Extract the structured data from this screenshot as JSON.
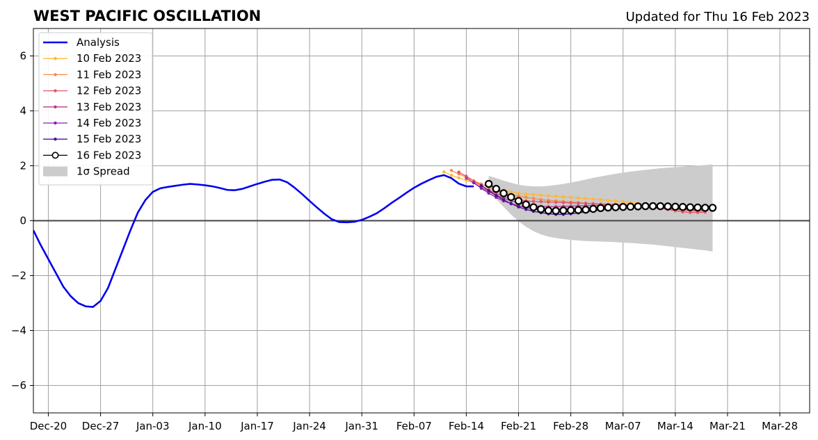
{
  "chart_data": {
    "type": "line",
    "title": "WEST PACIFIC OSCILLATION",
    "subtitle": "Updated for Thu 16 Feb 2023",
    "xlabel": "",
    "ylabel": "",
    "x_ticks": [
      "Dec-20",
      "Dec-27",
      "Jan-03",
      "Jan-10",
      "Jan-17",
      "Jan-24",
      "Jan-31",
      "Feb-07",
      "Feb-14",
      "Feb-21",
      "Feb-28",
      "Mar-07",
      "Mar-14",
      "Mar-21",
      "Mar-28"
    ],
    "y_ticks": [
      "6",
      "4",
      "2",
      "0",
      "−2",
      "−4",
      "−6"
    ],
    "y_tick_values": [
      6,
      4,
      2,
      0,
      -2,
      -4,
      -6
    ],
    "xlim": [
      "2022-12-18",
      "2023-04-01"
    ],
    "ylim": [
      -7,
      7
    ],
    "grid": true,
    "legend_position": "top-left",
    "colors": {
      "analysis": "#0000ee",
      "spread": "#cccccc",
      "zero_line": "#444444",
      "grid": "#a0a0a0"
    },
    "analysis": {
      "name": "Analysis",
      "x": [
        "2022-12-18",
        "2022-12-19",
        "2022-12-20",
        "2022-12-21",
        "2022-12-22",
        "2022-12-23",
        "2022-12-24",
        "2022-12-25",
        "2022-12-26",
        "2022-12-27",
        "2022-12-28",
        "2022-12-29",
        "2022-12-30",
        "2022-12-31",
        "2023-01-01",
        "2023-01-02",
        "2023-01-03",
        "2023-01-04",
        "2023-01-05",
        "2023-01-06",
        "2023-01-07",
        "2023-01-08",
        "2023-01-09",
        "2023-01-10",
        "2023-01-11",
        "2023-01-12",
        "2023-01-13",
        "2023-01-14",
        "2023-01-15",
        "2023-01-16",
        "2023-01-17",
        "2023-01-18",
        "2023-01-19",
        "2023-01-20",
        "2023-01-21",
        "2023-01-22",
        "2023-01-23",
        "2023-01-24",
        "2023-01-25",
        "2023-01-26",
        "2023-01-27",
        "2023-01-28",
        "2023-01-29",
        "2023-01-30",
        "2023-01-31",
        "2023-02-01",
        "2023-02-02",
        "2023-02-03",
        "2023-02-04",
        "2023-02-05",
        "2023-02-06",
        "2023-02-07",
        "2023-02-08",
        "2023-02-09",
        "2023-02-10",
        "2023-02-11",
        "2023-02-12",
        "2023-02-13",
        "2023-02-14",
        "2023-02-15"
      ],
      "y": [
        -0.35,
        -0.9,
        -1.4,
        -1.9,
        -2.4,
        -2.75,
        -3.0,
        -3.12,
        -3.14,
        -2.92,
        -2.45,
        -1.75,
        -1.05,
        -0.35,
        0.3,
        0.75,
        1.05,
        1.18,
        1.23,
        1.27,
        1.31,
        1.34,
        1.32,
        1.29,
        1.25,
        1.19,
        1.12,
        1.11,
        1.16,
        1.25,
        1.34,
        1.42,
        1.49,
        1.5,
        1.4,
        1.2,
        0.97,
        0.72,
        0.48,
        0.25,
        0.05,
        -0.05,
        -0.06,
        -0.04,
        0.03,
        0.14,
        0.27,
        0.45,
        0.65,
        0.83,
        1.02,
        1.2,
        1.35,
        1.48,
        1.6,
        1.66,
        1.55,
        1.35,
        1.25,
        1.25
      ]
    },
    "series": [
      {
        "name": "10 Feb 2023",
        "color": "#ffb732",
        "start": "2023-02-11",
        "y": [
          1.78,
          1.65,
          1.56,
          1.47,
          1.38,
          1.3,
          1.23,
          1.16,
          1.1,
          1.05,
          1.0,
          0.97,
          0.95,
          0.93,
          0.91,
          0.89,
          0.87,
          0.85,
          0.83,
          0.81,
          0.79,
          0.77,
          0.74,
          0.72,
          0.69,
          0.66,
          0.63,
          0.6,
          0.57,
          0.54,
          0.51,
          0.49,
          0.47,
          0.45,
          0.43,
          0.42
        ]
      },
      {
        "name": "11 Feb 2023",
        "color": "#f58b48",
        "start": "2023-02-12",
        "y": [
          1.83,
          1.7,
          1.58,
          1.45,
          1.34,
          1.22,
          1.12,
          1.03,
          0.96,
          0.9,
          0.85,
          0.81,
          0.77,
          0.74,
          0.72,
          0.7,
          0.68,
          0.66,
          0.64,
          0.62,
          0.6,
          0.58,
          0.56,
          0.54,
          0.52,
          0.5,
          0.48,
          0.46,
          0.44,
          0.42,
          0.4,
          0.38,
          0.36,
          0.34,
          0.33
        ]
      },
      {
        "name": "12 Feb 2023",
        "color": "#e0576a",
        "start": "2023-02-13",
        "y": [
          1.77,
          1.62,
          1.45,
          1.28,
          1.12,
          0.99,
          0.88,
          0.8,
          0.75,
          0.72,
          0.7,
          0.69,
          0.68,
          0.67,
          0.66,
          0.65,
          0.64,
          0.63,
          0.62,
          0.61,
          0.6,
          0.59,
          0.58,
          0.57,
          0.55,
          0.53,
          0.5,
          0.46,
          0.41,
          0.36,
          0.32,
          0.3,
          0.3,
          0.31
        ]
      },
      {
        "name": "13 Feb 2023",
        "color": "#b6388e",
        "start": "2023-02-14",
        "y": [
          1.55,
          1.38,
          1.21,
          1.06,
          0.93,
          0.82,
          0.72,
          0.64,
          0.58,
          0.54,
          0.52,
          0.51,
          0.51,
          0.52,
          0.53,
          0.54,
          0.55,
          0.56,
          0.56,
          0.56,
          0.55,
          0.54,
          0.53,
          0.52,
          0.5,
          0.48,
          0.46,
          0.44,
          0.42,
          0.4,
          0.39,
          0.38,
          0.38
        ]
      },
      {
        "name": "14 Feb 2023",
        "color": "#8a1ea6",
        "start": "2023-02-15",
        "y": [
          1.38,
          1.18,
          1.0,
          0.85,
          0.72,
          0.62,
          0.54,
          0.48,
          0.43,
          0.39,
          0.36,
          0.35,
          0.35,
          0.36,
          0.38,
          0.4,
          0.42,
          0.44,
          0.46,
          0.47,
          0.48,
          0.49,
          0.49,
          0.49,
          0.48,
          0.47,
          0.46,
          0.45,
          0.44,
          0.43,
          0.42,
          0.42
        ]
      },
      {
        "name": "15 Feb 2023",
        "color": "#4c1290",
        "start": "2023-02-16",
        "y": [
          1.28,
          1.1,
          0.92,
          0.76,
          0.62,
          0.5,
          0.41,
          0.34,
          0.29,
          0.25,
          0.23,
          0.23,
          0.25,
          0.28,
          0.32,
          0.36,
          0.4,
          0.43,
          0.46,
          0.48,
          0.5,
          0.51,
          0.52,
          0.53,
          0.53,
          0.53,
          0.52,
          0.51,
          0.5,
          0.49,
          0.48
        ]
      },
      {
        "name": "16 Feb 2023",
        "color": "#000000",
        "start": "2023-02-17",
        "y": [
          1.34,
          1.16,
          1.0,
          0.86,
          0.72,
          0.59,
          0.49,
          0.42,
          0.37,
          0.36,
          0.37,
          0.38,
          0.39,
          0.4,
          0.43,
          0.46,
          0.48,
          0.49,
          0.5,
          0.51,
          0.52,
          0.53,
          0.53,
          0.53,
          0.52,
          0.51,
          0.5,
          0.49,
          0.48,
          0.47,
          0.47
        ]
      }
    ],
    "spread": {
      "name": "1σ Spread",
      "start": "2023-02-17",
      "upper": [
        1.63,
        1.55,
        1.46,
        1.38,
        1.31,
        1.27,
        1.25,
        1.25,
        1.27,
        1.3,
        1.34,
        1.39,
        1.44,
        1.5,
        1.56,
        1.61,
        1.66,
        1.71,
        1.75,
        1.79,
        1.82,
        1.85,
        1.88,
        1.91,
        1.93,
        1.95,
        1.97,
        1.99,
        2.01,
        2.03,
        2.05
      ],
      "lower": [
        1.1,
        0.8,
        0.5,
        0.22,
        -0.02,
        -0.22,
        -0.38,
        -0.5,
        -0.58,
        -0.63,
        -0.67,
        -0.7,
        -0.72,
        -0.74,
        -0.75,
        -0.76,
        -0.77,
        -0.78,
        -0.8,
        -0.81,
        -0.83,
        -0.85,
        -0.87,
        -0.9,
        -0.93,
        -0.96,
        -0.99,
        -1.02,
        -1.05,
        -1.08,
        -1.12
      ]
    }
  }
}
